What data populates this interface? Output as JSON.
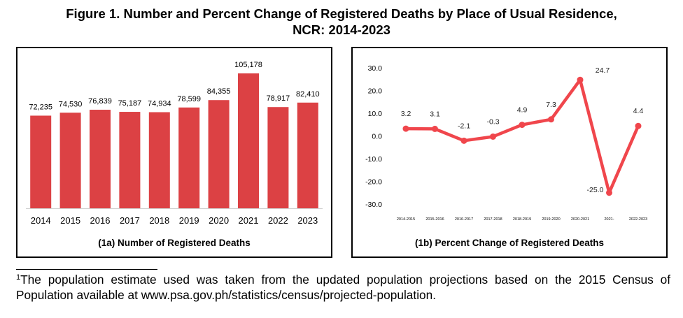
{
  "figure": {
    "title_line1": "Figure 1. Number and Percent Change of Registered Deaths by Place of Usual Residence,",
    "title_line2": "NCR: 2014-2023"
  },
  "chart_data": [
    {
      "id": "1a",
      "type": "bar",
      "caption": "(1a) Number of Registered Deaths",
      "categories": [
        "2014",
        "2015",
        "2016",
        "2017",
        "2018",
        "2019",
        "2020",
        "2021",
        "2022",
        "2023"
      ],
      "values": [
        72235,
        74530,
        76839,
        75187,
        74934,
        78599,
        84355,
        105178,
        78917,
        82410
      ],
      "value_labels": [
        "72,235",
        "74,530",
        "76,839",
        "75,187",
        "74,934",
        "78,599",
        "84,355",
        "105,178",
        "78,917",
        "82,410"
      ],
      "color": "#dc4144",
      "ylim": [
        0,
        115000
      ]
    },
    {
      "id": "1b",
      "type": "line",
      "caption": "(1b) Percent Change of Registered Deaths",
      "categories": [
        "2014-2015",
        "2015-2016",
        "2016-2017",
        "2017-2018",
        "2018-2019",
        "2019-2020",
        "2020-2021",
        "2021-",
        "2022-2023"
      ],
      "values": [
        3.2,
        3.1,
        -2.1,
        -0.3,
        4.9,
        7.3,
        24.7,
        -25.0,
        4.4
      ],
      "value_labels": [
        "3.2",
        "3.1",
        "-2.1",
        "-0.3",
        "4.9",
        "7.3",
        "24.7",
        "-25.0",
        "4.4"
      ],
      "y_ticks": [
        "30.0",
        "20.0",
        "10.0",
        "0.0",
        "-10.0",
        "-20.0",
        "-30.0"
      ],
      "ylim": [
        -30,
        30
      ],
      "color": "#f0464c"
    }
  ],
  "footnote": {
    "marker": "1",
    "text": "The population estimate used was taken from the updated population projections based on the 2015 Census of Population available at www.psa.gov.ph/statistics/census/projected-population."
  }
}
